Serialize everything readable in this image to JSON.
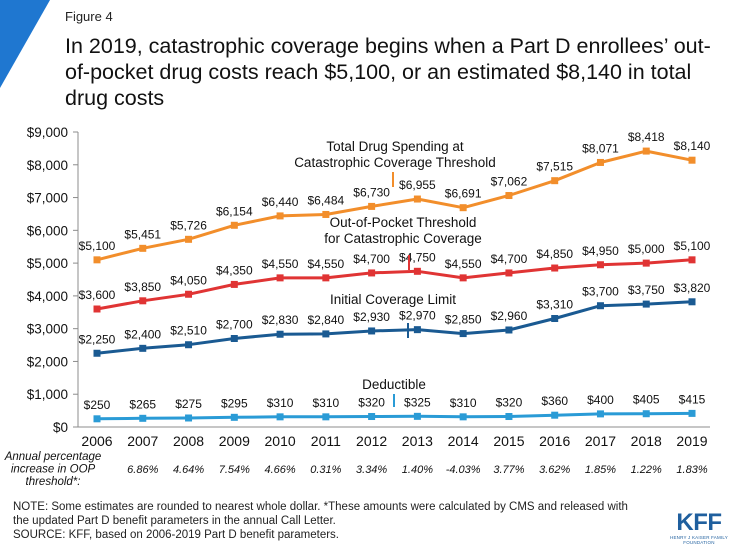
{
  "figure_label": "Figure 4",
  "title": "In 2019, catastrophic coverage begins when a Part D enrollees’ out-of-pocket drug costs reach $5,100, or an estimated $8,140 in total drug costs",
  "note_line1": "NOTE: Some estimates are rounded to nearest whole dollar. *These amounts were calculated by CMS and released with",
  "note_line2": "the updated Part D benefit parameters in the annual  Call Letter.",
  "source": "SOURCE: KFF, based on 2006-2019 Part D benefit parameters.",
  "logo": {
    "main": "KFF",
    "sub": "HENRY J KAISER FAMILY FOUNDATION"
  },
  "chart_data": {
    "type": "line",
    "x": [
      "2006",
      "2007",
      "2008",
      "2009",
      "2010",
      "2011",
      "2012",
      "2013",
      "2014",
      "2015",
      "2016",
      "2017",
      "2018",
      "2019"
    ],
    "ylim": [
      0,
      9000
    ],
    "yticks": [
      0,
      1000,
      2000,
      3000,
      4000,
      5000,
      6000,
      7000,
      8000,
      9000
    ],
    "ytick_labels": [
      "$0",
      "$1,000",
      "$2,000",
      "$3,000",
      "$4,000",
      "$5,000",
      "$6,000",
      "$7,000",
      "$8,000",
      "$9,000"
    ],
    "grid": false,
    "legend": "inline labels",
    "series": [
      {
        "name": "Total Drug Spending at Catastrophic Coverage Threshold",
        "name_lines": [
          "Total Drug Spending at",
          "Catastrophic Coverage Threshold"
        ],
        "color": "#f28e2b",
        "values": [
          5100,
          5451,
          5726,
          6154,
          6440,
          6484,
          6730,
          6955,
          6691,
          7062,
          7515,
          8071,
          8418,
          8140
        ],
        "labels": [
          "$5,100",
          "$5,451",
          "$5,726",
          "$6,154",
          "$6,440",
          "$6,484",
          "$6,730",
          "$6,955",
          "$6,691",
          "$7,062",
          "$7,515",
          "$8,071",
          "$8,418",
          "$8,140"
        ]
      },
      {
        "name": "Out-of-Pocket Threshold for Catastrophic Coverage",
        "name_lines": [
          "Out-of-Pocket Threshold",
          "for Catastrophic Coverage"
        ],
        "color": "#e03434",
        "values": [
          3600,
          3850,
          4050,
          4350,
          4550,
          4550,
          4700,
          4750,
          4550,
          4700,
          4850,
          4950,
          5000,
          5100
        ],
        "labels": [
          "$3,600",
          "$3,850",
          "$4,050",
          "$4,350",
          "$4,550",
          "$4,550",
          "$4,700",
          "$4,750",
          "$4,550",
          "$4,700",
          "$4,850",
          "$4,950",
          "$5,000",
          "$5,100"
        ]
      },
      {
        "name": "Initial Coverage Limit",
        "name_lines": [
          "Initial Coverage Limit"
        ],
        "color": "#1a5a92",
        "values": [
          2250,
          2400,
          2510,
          2700,
          2830,
          2840,
          2930,
          2970,
          2850,
          2960,
          3310,
          3700,
          3750,
          3820
        ],
        "labels": [
          "$2,250",
          "$2,400",
          "$2,510",
          "$2,700",
          "$2,830",
          "$2,840",
          "$2,930",
          "$2,970",
          "$2,850",
          "$2,960",
          "$3,310",
          "$3,700",
          "$3,750",
          "$3,820"
        ]
      },
      {
        "name": "Deductible",
        "name_lines": [
          "Deductible"
        ],
        "color": "#2a9bd6",
        "values": [
          250,
          265,
          275,
          295,
          310,
          310,
          320,
          325,
          310,
          320,
          360,
          400,
          405,
          415
        ],
        "labels": [
          "$250",
          "$265",
          "$275",
          "$295",
          "$310",
          "$310",
          "$320",
          "$325",
          "$310",
          "$320",
          "$360",
          "$400",
          "$405",
          "$415"
        ]
      }
    ],
    "row_label_lines": [
      "Annual percentage",
      "increase in OOP",
      "threshold*:"
    ],
    "annual_increase": [
      "6.86%",
      "4.64%",
      "7.54%",
      "4.66%",
      "0.31%",
      "3.34%",
      "1.40%",
      "-4.03%",
      "3.77%",
      "3.62%",
      "1.85%",
      "1.22%",
      "1.83%"
    ]
  }
}
